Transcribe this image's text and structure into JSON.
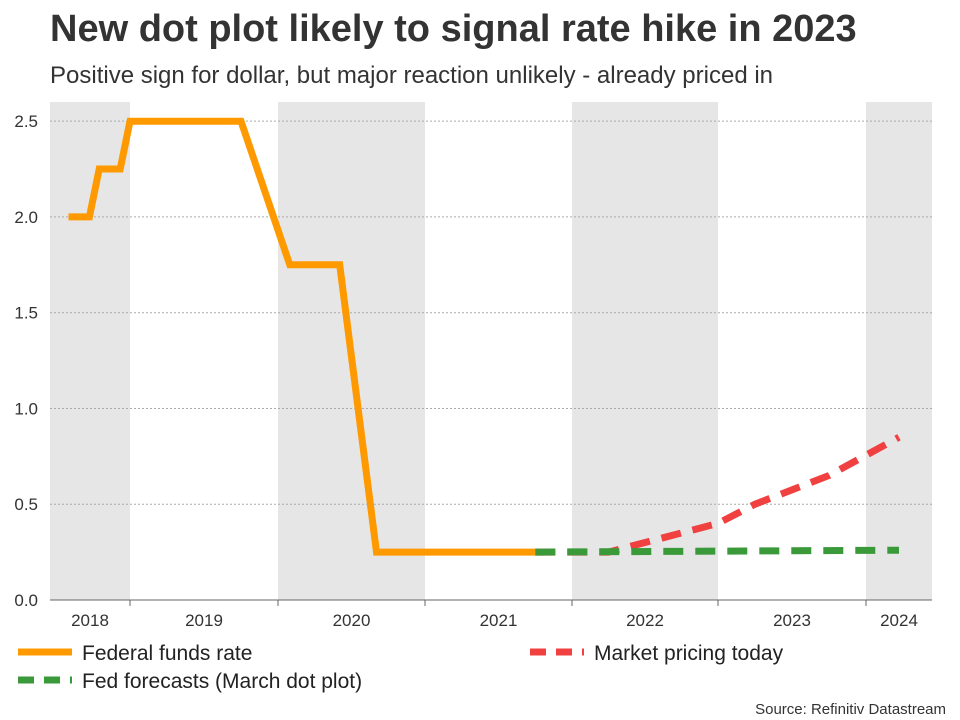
{
  "title": "New dot plot likely to signal rate hike in 2023",
  "subtitle": "Positive sign for dollar, but major reaction unlikely - already priced in",
  "source": "Source: Refinitiv Datastream",
  "colors": {
    "federal_funds_rate": "#ff9900",
    "market_pricing_today": "#f04040",
    "fed_forecasts": "#3a9a3a",
    "band": "#e6e6e6"
  },
  "chart_data": {
    "type": "line",
    "x_categories": [
      "2018",
      "2019",
      "2020",
      "2021",
      "2022",
      "2023",
      "2024"
    ],
    "ylim": [
      0,
      2.6
    ],
    "y_ticks": [
      "0.0",
      "0.5",
      "1.0",
      "1.5",
      "2.0",
      "2.5"
    ],
    "grid": true,
    "legend_position": "bottom",
    "series": [
      {
        "name": "Federal funds rate",
        "style": "solid",
        "points": [
          [
            2018.0,
            2.0
          ],
          [
            2018.17,
            2.0
          ],
          [
            2018.25,
            2.25
          ],
          [
            2018.42,
            2.25
          ],
          [
            2018.5,
            2.5
          ],
          [
            2019.25,
            2.5
          ],
          [
            2019.58,
            1.75
          ],
          [
            2019.92,
            1.75
          ],
          [
            2020.17,
            0.25
          ],
          [
            2021.25,
            0.25
          ]
        ]
      },
      {
        "name": "Market pricing today",
        "style": "dashed",
        "points": [
          [
            2021.25,
            0.25
          ],
          [
            2021.75,
            0.25
          ],
          [
            2022.0,
            0.3
          ],
          [
            2022.5,
            0.4
          ],
          [
            2022.75,
            0.5
          ],
          [
            2023.25,
            0.65
          ],
          [
            2023.75,
            0.85
          ]
        ]
      },
      {
        "name": "Fed forecasts (March dot plot)",
        "style": "dashed",
        "points": [
          [
            2021.25,
            0.25
          ],
          [
            2023.75,
            0.26
          ]
        ]
      }
    ]
  },
  "legend": [
    {
      "label": "Federal funds rate",
      "series": "federal_funds_rate"
    },
    {
      "label": "Market pricing today",
      "series": "market_pricing_today"
    },
    {
      "label": "Fed forecasts (March dot plot)",
      "series": "fed_forecasts"
    }
  ]
}
